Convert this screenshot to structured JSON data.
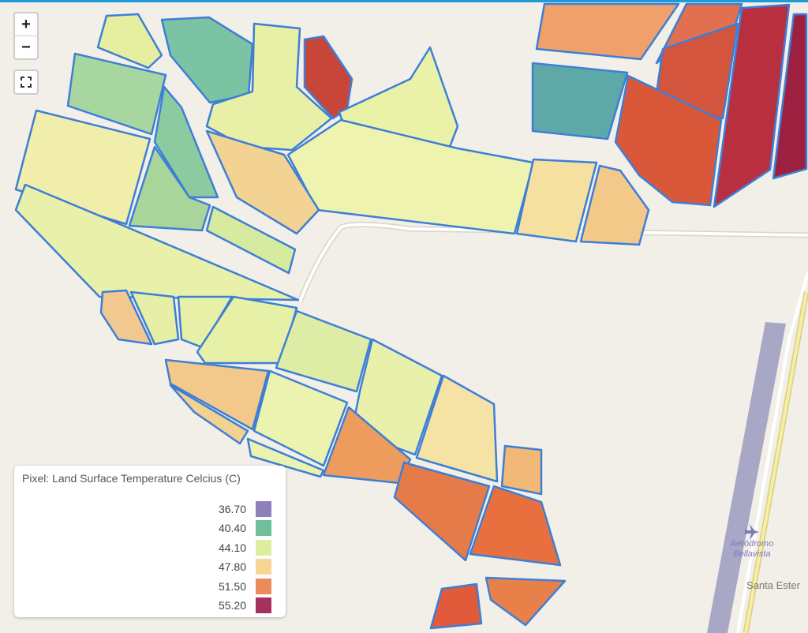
{
  "controls": {
    "zoom_in": "+",
    "zoom_out": "−"
  },
  "legend": {
    "title": "Pixel: Land Surface Temperature Celcius (C)",
    "items": [
      {
        "label": "36.70",
        "color": "#8e80b8"
      },
      {
        "label": "40.40",
        "color": "#6fbf9a"
      },
      {
        "label": "44.10",
        "color": "#ddef9f"
      },
      {
        "label": "47.80",
        "color": "#f7d592"
      },
      {
        "label": "51.50",
        "color": "#ec8a5c"
      },
      {
        "label": "55.20",
        "color": "#a8305c"
      }
    ]
  },
  "places": {
    "airport": [
      "Aeródromo",
      "Bellavista"
    ],
    "locality": "Santa Ester"
  }
}
